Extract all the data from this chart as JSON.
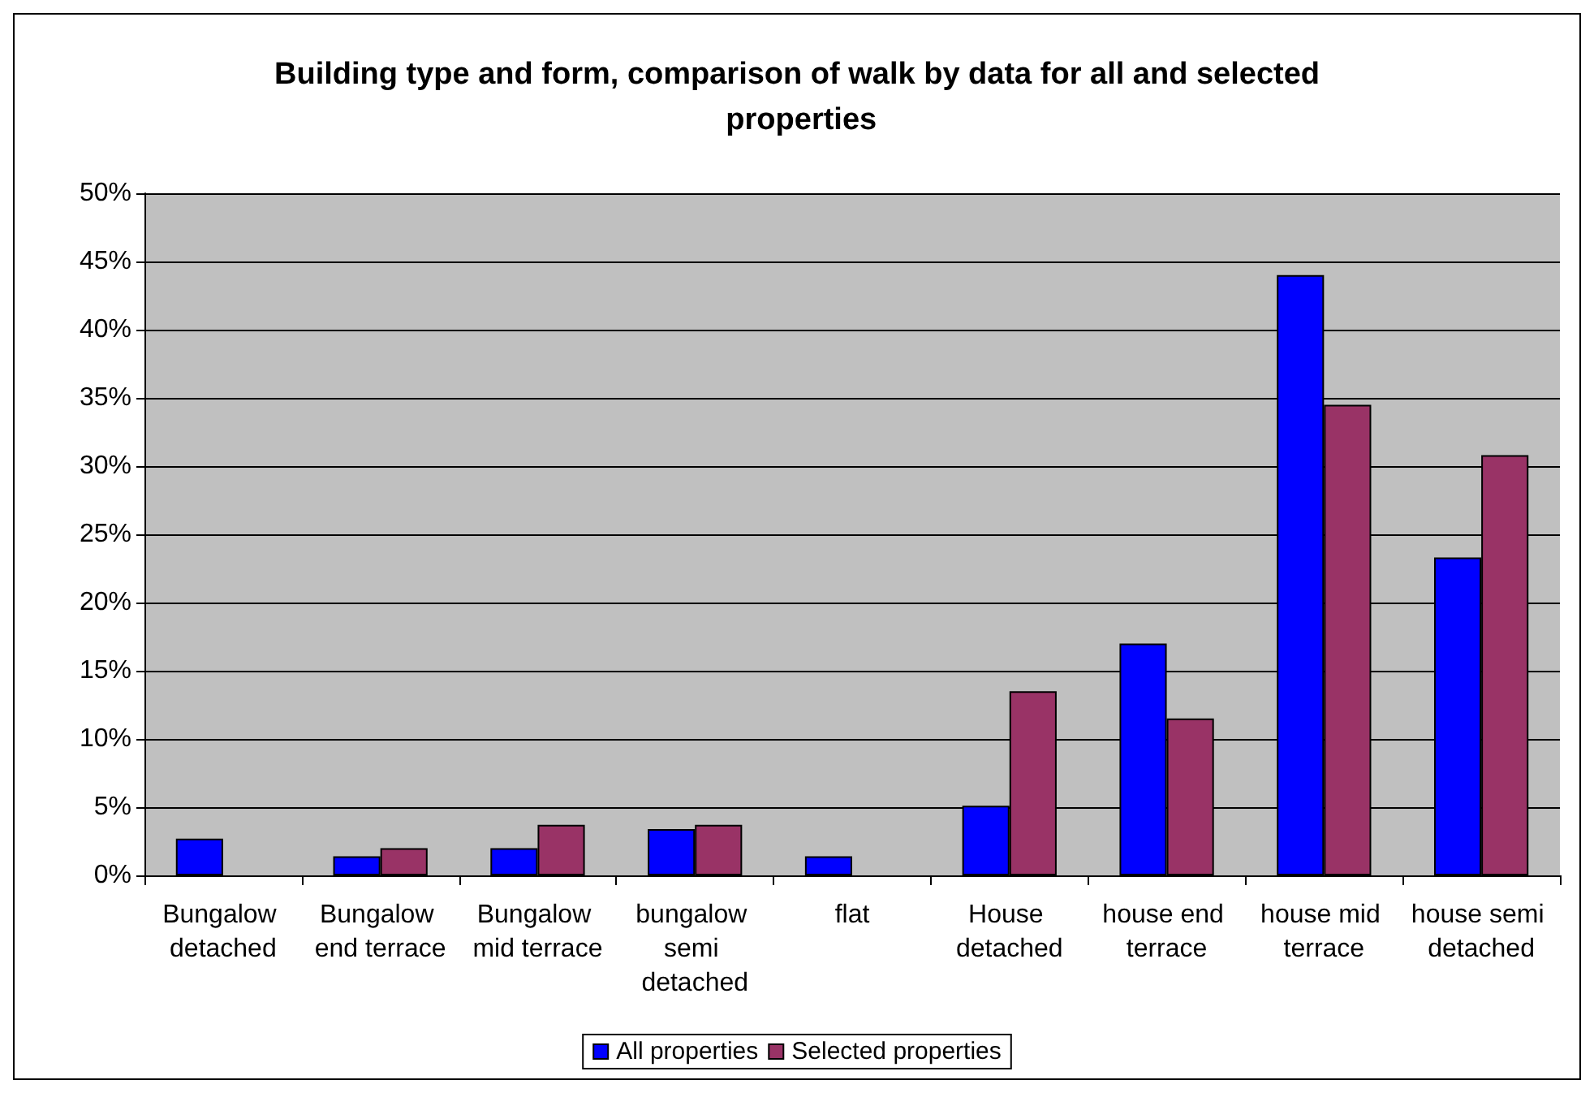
{
  "chart_data": {
    "type": "bar",
    "title": "Building type and form, comparison of walk by data for all and selected properties",
    "categories": [
      "Bungalow detached",
      "Bungalow end terrace",
      "Bungalow mid terrace",
      "bungalow semi detached",
      "flat",
      "House detached",
      "house end terrace",
      "house mid terrace",
      "house semi detached"
    ],
    "series": [
      {
        "name": "All properties",
        "color": "#0000ff",
        "values": [
          2.7,
          1.4,
          2.0,
          3.4,
          1.4,
          5.1,
          17.0,
          44.0,
          23.3
        ]
      },
      {
        "name": "Selected properties",
        "color": "#993366",
        "values": [
          null,
          2.0,
          3.7,
          3.7,
          null,
          13.5,
          11.5,
          34.5,
          30.8
        ]
      }
    ],
    "ylim": [
      0,
      50
    ],
    "yticks": [
      {
        "value": 0,
        "label": "0%"
      },
      {
        "value": 5,
        "label": "5%"
      },
      {
        "value": 10,
        "label": "10%"
      },
      {
        "value": 15,
        "label": "15%"
      },
      {
        "value": 20,
        "label": "20%"
      },
      {
        "value": 25,
        "label": "25%"
      },
      {
        "value": 30,
        "label": "30%"
      },
      {
        "value": 35,
        "label": "35%"
      },
      {
        "value": 40,
        "label": "40%"
      },
      {
        "value": 45,
        "label": "45%"
      },
      {
        "value": 50,
        "label": "50%"
      }
    ],
    "grid": "y",
    "legend": "bottom"
  }
}
